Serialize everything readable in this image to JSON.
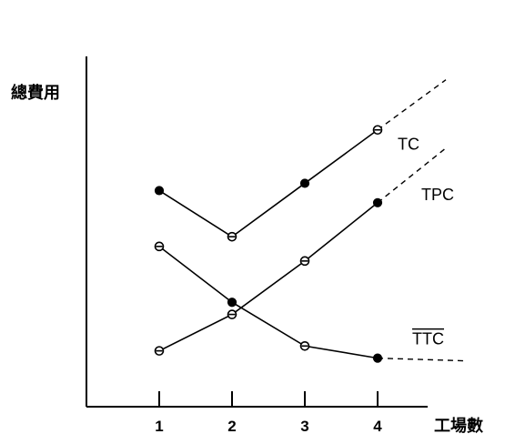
{
  "chart_data": {
    "type": "line",
    "title": "",
    "xlabel": "工場數",
    "ylabel": "總費用",
    "categories": [
      "1",
      "2",
      "3",
      "4"
    ],
    "x": [
      1,
      2,
      3,
      4
    ],
    "grid": false,
    "series": [
      {
        "name": "TC",
        "values": [
          89,
          70,
          92,
          114
        ],
        "markers": [
          "filled",
          "half",
          "filled",
          "half"
        ],
        "extension": "dashed-up"
      },
      {
        "name": "TPC",
        "values": [
          23,
          38,
          60,
          84
        ],
        "markers": [
          "half",
          "half",
          "half",
          "filled"
        ],
        "extension": "dashed-up"
      },
      {
        "name": "TTC",
        "overline": true,
        "values": [
          66,
          43,
          25,
          20
        ],
        "markers": [
          "half",
          "filled",
          "half",
          "filled"
        ],
        "extension": "dashed-flat"
      }
    ],
    "ylim": [
      0,
      145
    ],
    "xlim": [
      0,
      5.0
    ]
  }
}
